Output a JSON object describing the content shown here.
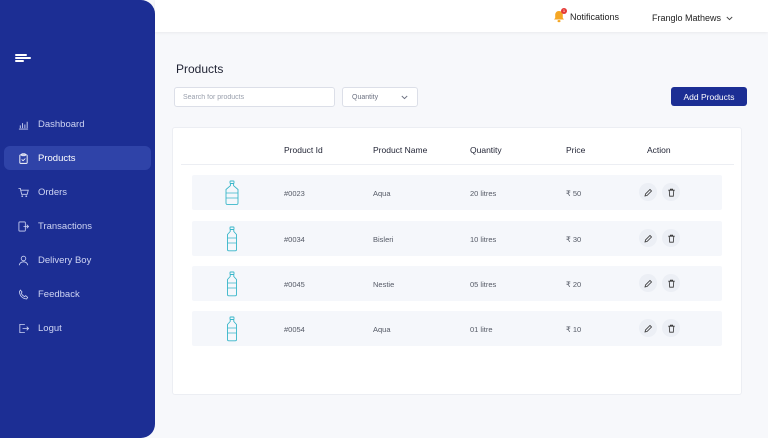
{
  "colors": {
    "primary": "#1c2e94",
    "active_nav": "#2f43a8",
    "bottle": "#38b6c9",
    "badge": "#e53935",
    "bell": "#f5a623"
  },
  "topbar": {
    "notifications_label": "Notifications",
    "notifications_icon": "bell-icon",
    "notification_count": "1",
    "user_name": "Franglo Mathews"
  },
  "sidebar": {
    "items": [
      {
        "label": "Dashboard",
        "icon": "bar-chart-icon"
      },
      {
        "label": "Products",
        "icon": "clipboard-icon",
        "active": true
      },
      {
        "label": "Orders",
        "icon": "cart-icon"
      },
      {
        "label": "Transactions",
        "icon": "transfer-icon"
      },
      {
        "label": "Delivery Boy",
        "icon": "user-icon"
      },
      {
        "label": "Feedback",
        "icon": "phone-icon"
      },
      {
        "label": "Logut",
        "icon": "logout-icon"
      }
    ]
  },
  "main": {
    "title": "Products",
    "search": {
      "placeholder": "Search for products",
      "value": ""
    },
    "filter": {
      "selected": "Quantity"
    },
    "add_button": "Add Products"
  },
  "table": {
    "columns": [
      "Product Id",
      "Product Name",
      "Quantity",
      "Price",
      "Action"
    ],
    "rows": [
      {
        "id": "#0023",
        "name": "Aqua",
        "quantity": "20 litres",
        "price": "₹ 50",
        "image": "water-jug-icon"
      },
      {
        "id": "#0034",
        "name": "Bisleri",
        "quantity": "10 litres",
        "price": "₹ 30",
        "image": "bottle-icon"
      },
      {
        "id": "#0045",
        "name": "Nestie",
        "quantity": "05 litres",
        "price": "₹ 20",
        "image": "bottle-icon"
      },
      {
        "id": "#0054",
        "name": "Aqua",
        "quantity": "01 litre",
        "price": "₹ 10",
        "image": "bottle-icon"
      }
    ]
  }
}
